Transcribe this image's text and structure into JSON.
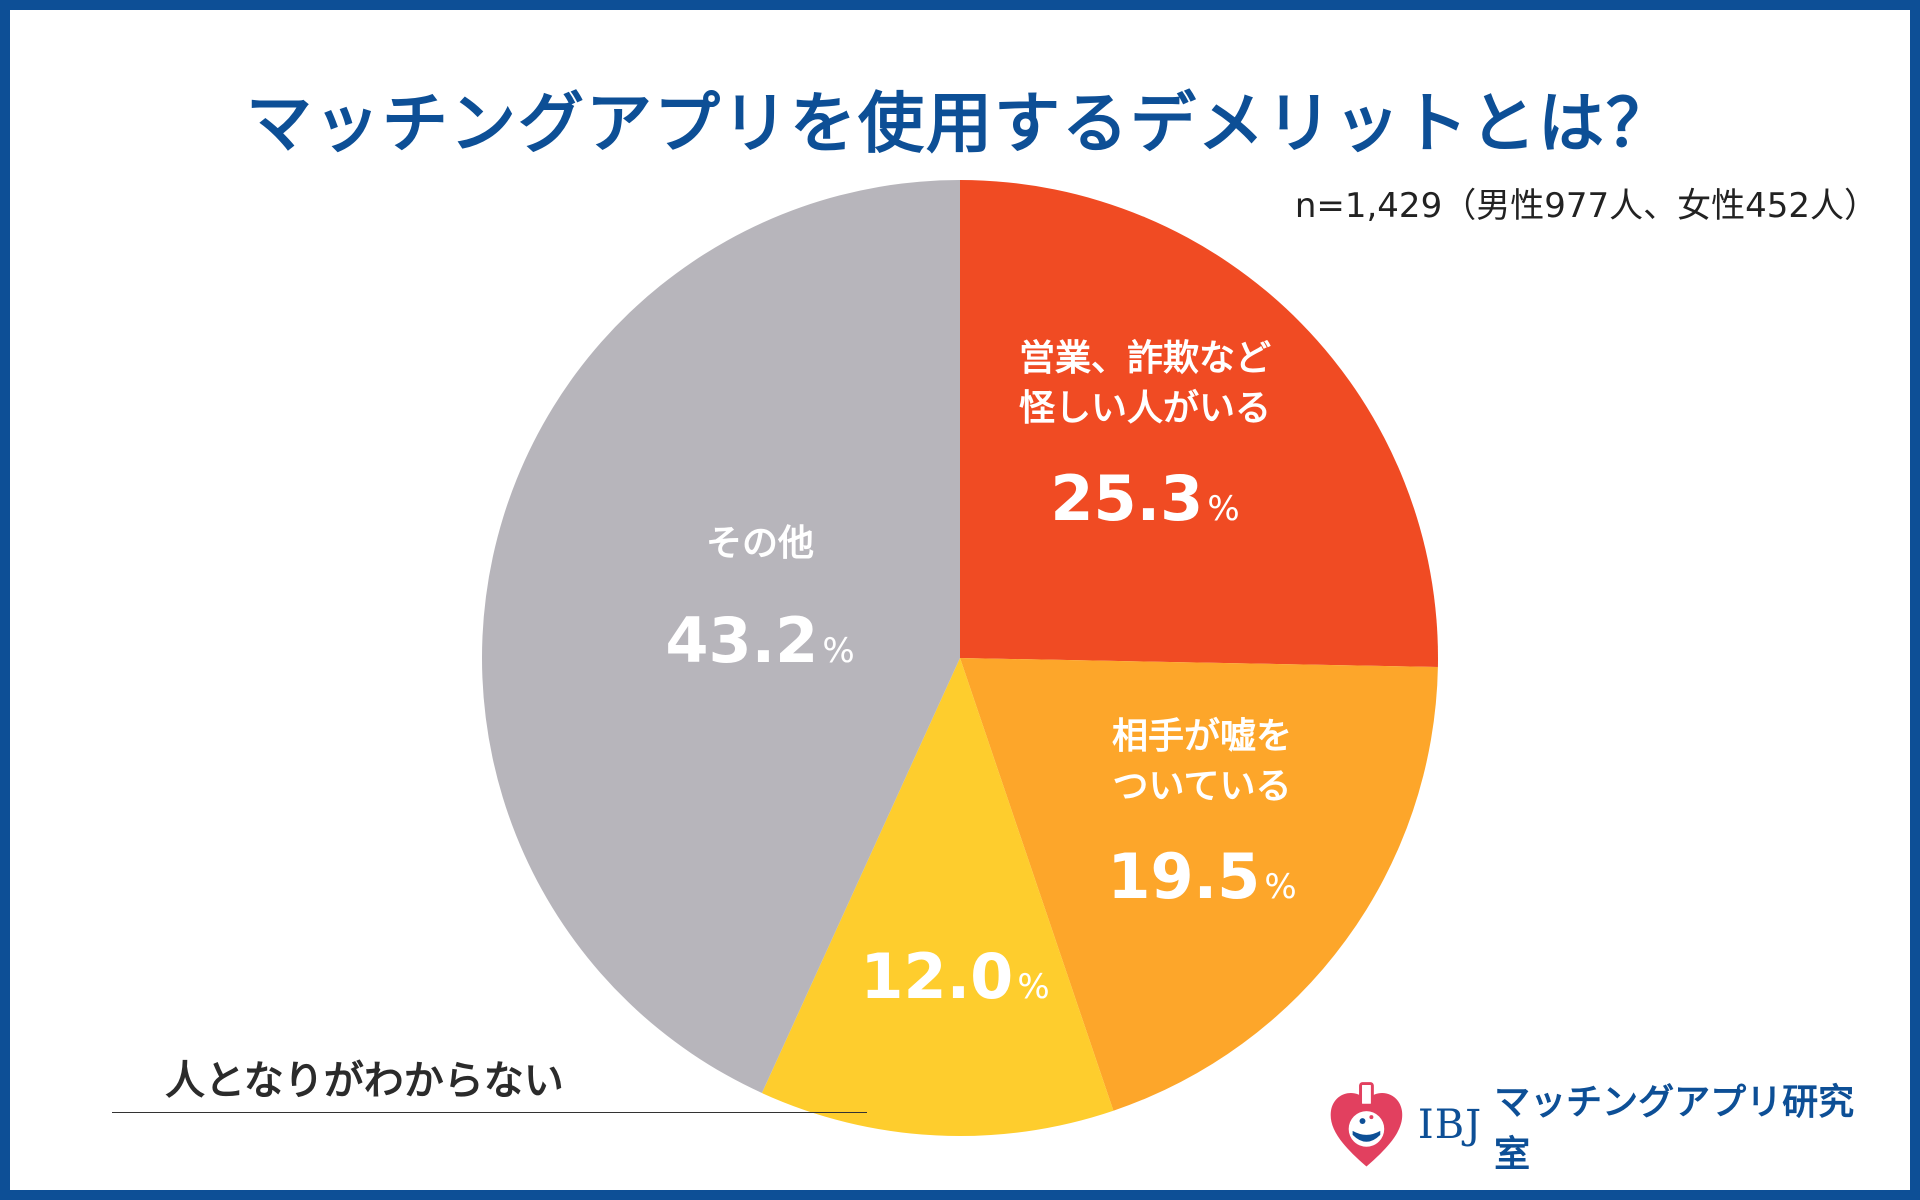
{
  "title": "マッチングアプリを使用するデメリットとは？",
  "sample_note": "n=1,429（男性977人、女性452人）",
  "brand": {
    "ibj": "IBJ",
    "name": "マッチングアプリ研究室",
    "icon": "heart-flask-logo"
  },
  "colors": {
    "frame": "#0d4f96",
    "title": "#0d4f96"
  },
  "chart_data": {
    "type": "pie",
    "title": "マッチングアプリを使用するデメリットとは？",
    "start": "12 o'clock, clockwise",
    "percent_sign": "%",
    "slices": [
      {
        "label_lines": [
          "営業、詐欺など",
          "怪しい人がいる"
        ],
        "value": 25.3,
        "value_text": "25.3",
        "color": "#f04b23",
        "label_position": "inside"
      },
      {
        "label_lines": [
          "相手が嘘を",
          "ついている"
        ],
        "value": 19.5,
        "value_text": "19.5",
        "color": "#fda62a",
        "label_position": "inside"
      },
      {
        "label_lines": [
          "人となりがわからない"
        ],
        "value": 12.0,
        "value_text": "12.0",
        "color": "#fecd2d",
        "label_position": "callout-left"
      },
      {
        "label_lines": [
          "その他"
        ],
        "value": 43.2,
        "value_text": "43.2",
        "color": "#b7b5bb",
        "label_position": "inside"
      }
    ]
  }
}
